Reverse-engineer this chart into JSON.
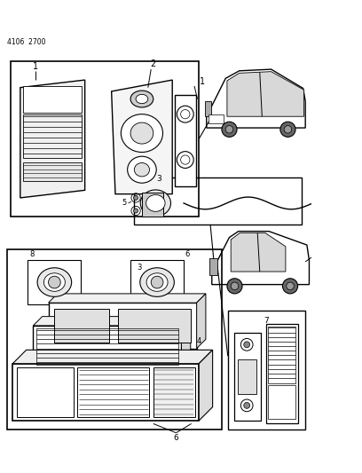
{
  "doc_number": "4106  2700",
  "background_color": "#ffffff",
  "figsize": [
    4.08,
    5.33
  ],
  "dpi": 100
}
